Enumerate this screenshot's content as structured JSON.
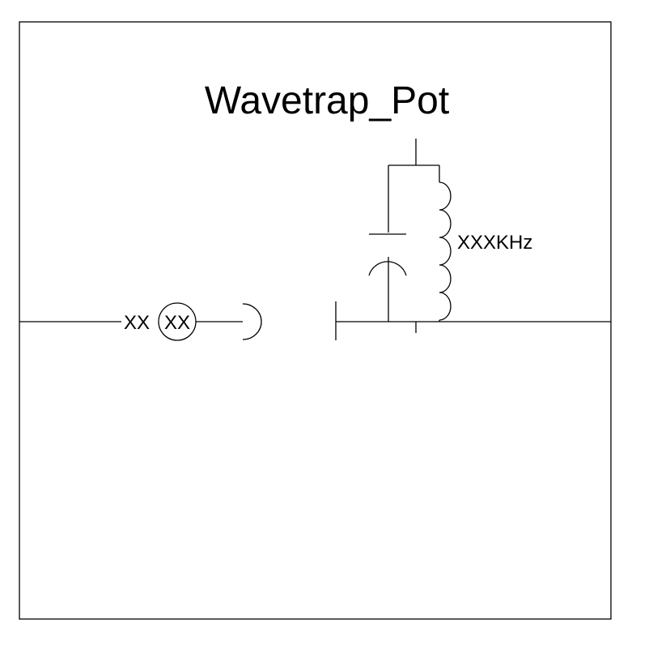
{
  "diagram": {
    "title": "Wavetrap_Pot",
    "left_label": "XX",
    "meter_label": "XX",
    "frequency_label": "XXXKHz"
  },
  "colors": {
    "background": "#ffffff",
    "line": "#000000"
  }
}
